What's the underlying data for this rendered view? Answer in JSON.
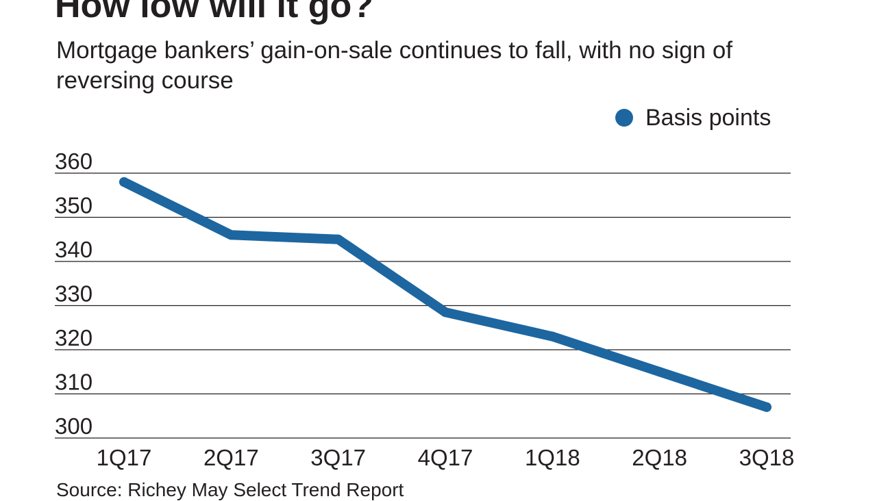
{
  "chart_data": {
    "type": "line",
    "title": "How low will it go?",
    "subtitle": "Mortgage bankers’ gain-on-sale continues to fall, with no sign of reversing course",
    "categories": [
      "1Q17",
      "2Q17",
      "3Q17",
      "4Q17",
      "1Q18",
      "2Q18",
      "3Q18"
    ],
    "series": [
      {
        "name": "Basis points",
        "values": [
          358,
          346,
          345,
          328.5,
          323,
          315,
          307
        ]
      }
    ],
    "xlabel": "",
    "ylabel": "",
    "ylim": [
      300,
      360
    ],
    "yticks": [
      "300",
      "310",
      "320",
      "330",
      "340",
      "350",
      "360"
    ],
    "grid": true,
    "legend_position": "top-right",
    "source": "Source: Richey May Select Trend Report",
    "colors": {
      "series": "#1d66a0",
      "text": "#231f20",
      "grid": "#231f20"
    }
  }
}
